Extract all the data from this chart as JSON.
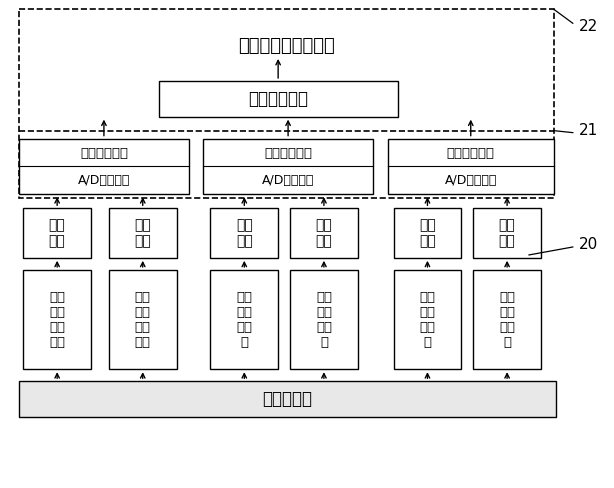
{
  "bg_color": "#ffffff",
  "text_color": "#000000",
  "label_22": "22",
  "label_21": "21",
  "label_20": "20",
  "top_label": "链条张紧状态指示灯",
  "second_box_text": "二级融合中心",
  "primary_line1": "初级融合中心",
  "primary_line2": "A/D转换接口",
  "signal_text": "信号\n调理",
  "sensor_texts": [
    "链条\n悬垂\n量传\n感器",
    "链条\n悬垂\n量传\n感器",
    "电机\n功率\n传感\n器",
    "电机\n功率\n传感\n器",
    "油缸\n压力\n传感\n器",
    "油缸\n压力\n传感\n器"
  ],
  "bottom_box_text": "刷板输送机"
}
